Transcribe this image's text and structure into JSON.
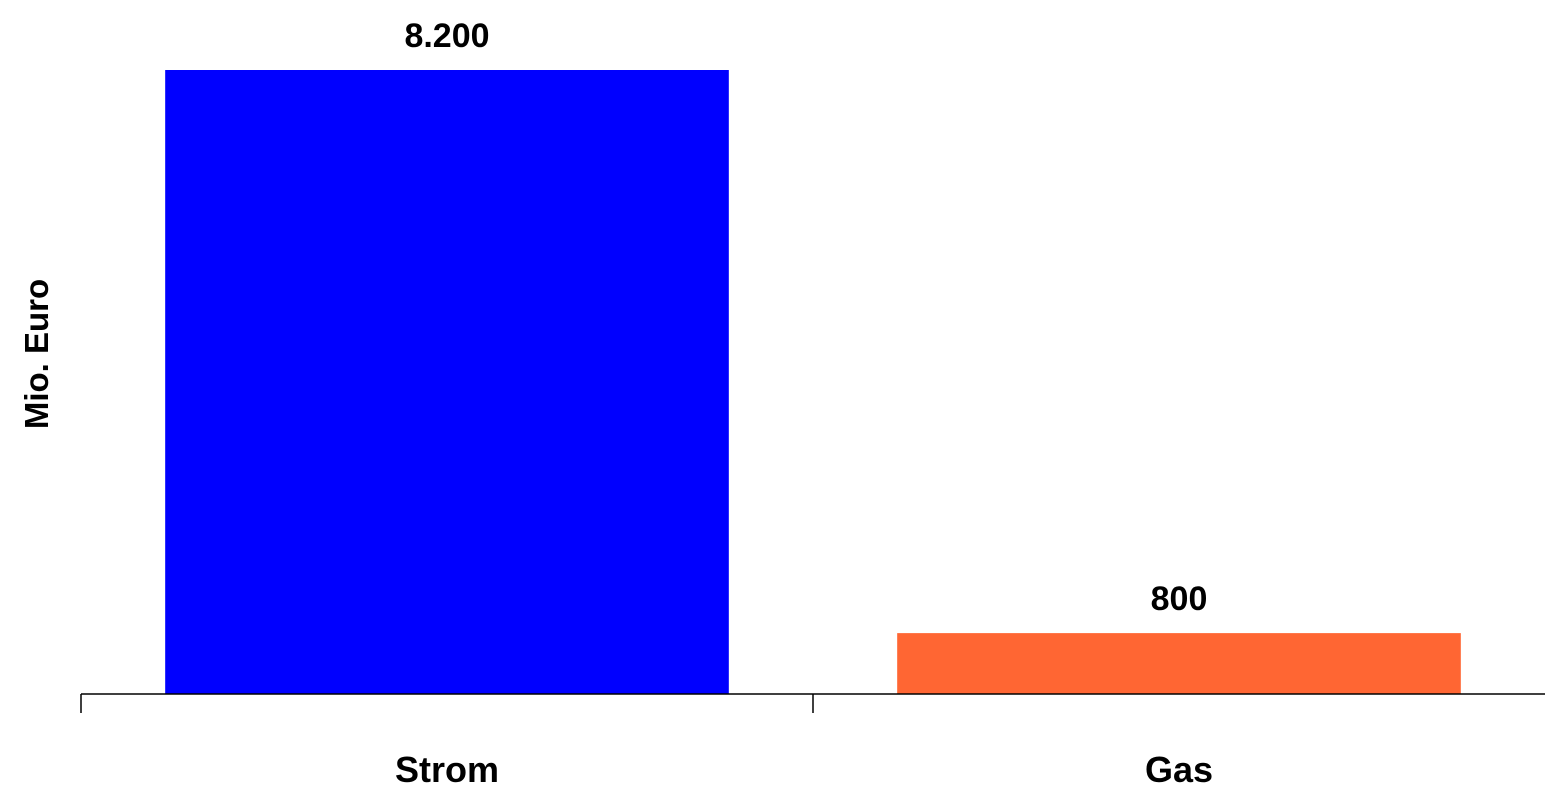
{
  "chart_data": {
    "type": "bar",
    "categories": [
      "Strom",
      "Gas"
    ],
    "values": [
      8200,
      800
    ],
    "value_labels": [
      "8.200",
      "800"
    ],
    "colors": [
      "#0000FF",
      "#FF6633"
    ],
    "ylabel": "Mio. Euro",
    "xlabel": "",
    "title": "",
    "ylim": [
      0,
      8200
    ],
    "grid": false,
    "legend": "none"
  }
}
